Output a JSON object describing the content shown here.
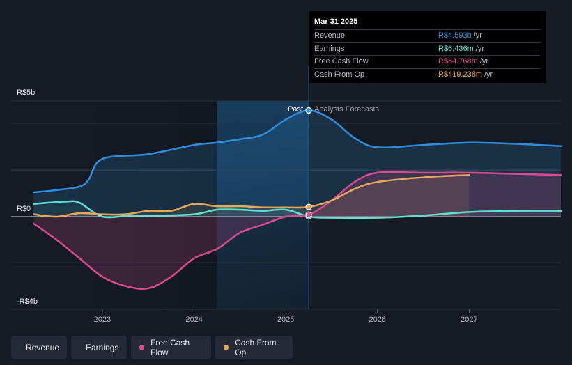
{
  "chart_data": {
    "type": "line",
    "title": "",
    "currency_prefix": "R$",
    "y_labels": [
      "R$5b",
      "R$0",
      "-R$4b"
    ],
    "x_ticks": [
      "2023",
      "2024",
      "2025",
      "2026",
      "2027"
    ],
    "ylim": [
      -4,
      5
    ],
    "past_label": "Past",
    "forecast_label": "Analysts Forecasts",
    "divider_x": 2025.25,
    "series": [
      {
        "name": "Revenue",
        "color": "#2e8fe0",
        "points": [
          [
            2022.25,
            1.05
          ],
          [
            2022.5,
            1.15
          ],
          [
            2022.75,
            1.3
          ],
          [
            2022.85,
            1.6
          ],
          [
            2023.0,
            2.5
          ],
          [
            2023.5,
            2.7
          ],
          [
            2024.0,
            3.1
          ],
          [
            2024.25,
            3.2
          ],
          [
            2024.5,
            3.35
          ],
          [
            2024.75,
            3.55
          ],
          [
            2025.0,
            4.2
          ],
          [
            2025.25,
            4.593
          ],
          [
            2025.5,
            4.2
          ],
          [
            2025.75,
            3.4
          ],
          [
            2026.0,
            3.0
          ],
          [
            2026.5,
            3.1
          ],
          [
            2027.0,
            3.2
          ],
          [
            2027.5,
            3.15
          ],
          [
            2028.0,
            3.05
          ]
        ]
      },
      {
        "name": "Earnings",
        "color": "#5ee0d2",
        "points": [
          [
            2022.25,
            0.55
          ],
          [
            2022.6,
            0.65
          ],
          [
            2022.75,
            0.6
          ],
          [
            2023.0,
            0.0
          ],
          [
            2023.3,
            0.05
          ],
          [
            2023.6,
            0.05
          ],
          [
            2024.0,
            0.1
          ],
          [
            2024.25,
            0.3
          ],
          [
            2024.5,
            0.3
          ],
          [
            2024.75,
            0.25
          ],
          [
            2025.0,
            0.3
          ],
          [
            2025.25,
            0.006
          ],
          [
            2025.5,
            -0.05
          ],
          [
            2026.0,
            -0.05
          ],
          [
            2026.5,
            0.05
          ],
          [
            2027.0,
            0.2
          ],
          [
            2027.5,
            0.25
          ],
          [
            2028.0,
            0.25
          ]
        ]
      },
      {
        "name": "Free Cash Flow",
        "color": "#d94c8e",
        "points": [
          [
            2022.25,
            -0.3
          ],
          [
            2022.5,
            -1.0
          ],
          [
            2022.75,
            -1.8
          ],
          [
            2023.0,
            -2.6
          ],
          [
            2023.25,
            -3.0
          ],
          [
            2023.5,
            -3.1
          ],
          [
            2023.75,
            -2.6
          ],
          [
            2024.0,
            -1.8
          ],
          [
            2024.25,
            -1.4
          ],
          [
            2024.5,
            -0.7
          ],
          [
            2024.75,
            -0.35
          ],
          [
            2025.0,
            0.0
          ],
          [
            2025.25,
            0.085
          ],
          [
            2025.5,
            0.7
          ],
          [
            2025.75,
            1.5
          ],
          [
            2026.0,
            1.9
          ],
          [
            2026.5,
            1.9
          ],
          [
            2027.0,
            1.9
          ],
          [
            2027.5,
            1.85
          ],
          [
            2028.0,
            1.8
          ]
        ]
      },
      {
        "name": "Cash From Op",
        "color": "#e8a85c",
        "points": [
          [
            2022.25,
            0.1
          ],
          [
            2022.5,
            0.0
          ],
          [
            2022.75,
            0.15
          ],
          [
            2023.0,
            0.1
          ],
          [
            2023.25,
            0.1
          ],
          [
            2023.5,
            0.25
          ],
          [
            2023.75,
            0.25
          ],
          [
            2024.0,
            0.55
          ],
          [
            2024.25,
            0.45
          ],
          [
            2024.5,
            0.45
          ],
          [
            2024.75,
            0.4
          ],
          [
            2025.0,
            0.4
          ],
          [
            2025.25,
            0.419
          ],
          [
            2025.5,
            0.7
          ],
          [
            2025.75,
            1.2
          ],
          [
            2026.0,
            1.5
          ],
          [
            2026.5,
            1.7
          ],
          [
            2027.0,
            1.8
          ]
        ]
      }
    ]
  },
  "tooltip": {
    "date": "Mar 31 2025",
    "rows": [
      {
        "label": "Revenue",
        "value": "R$4.593b",
        "unit": "/yr",
        "color": "#2e8fe0"
      },
      {
        "label": "Earnings",
        "value": "R$6.436m",
        "unit": "/yr",
        "color": "#5ee0d2"
      },
      {
        "label": "Free Cash Flow",
        "value": "R$84.768m",
        "unit": "/yr",
        "color": "#d94c8e"
      },
      {
        "label": "Cash From Op",
        "value": "R$419.238m",
        "unit": "/yr",
        "color": "#e8a85c"
      }
    ]
  },
  "legend": [
    {
      "label": "Revenue",
      "color": "#2e8fe0"
    },
    {
      "label": "Earnings",
      "color": "#5ee0d2"
    },
    {
      "label": "Free Cash Flow",
      "color": "#d94c8e"
    },
    {
      "label": "Cash From Op",
      "color": "#e8a85c"
    }
  ]
}
